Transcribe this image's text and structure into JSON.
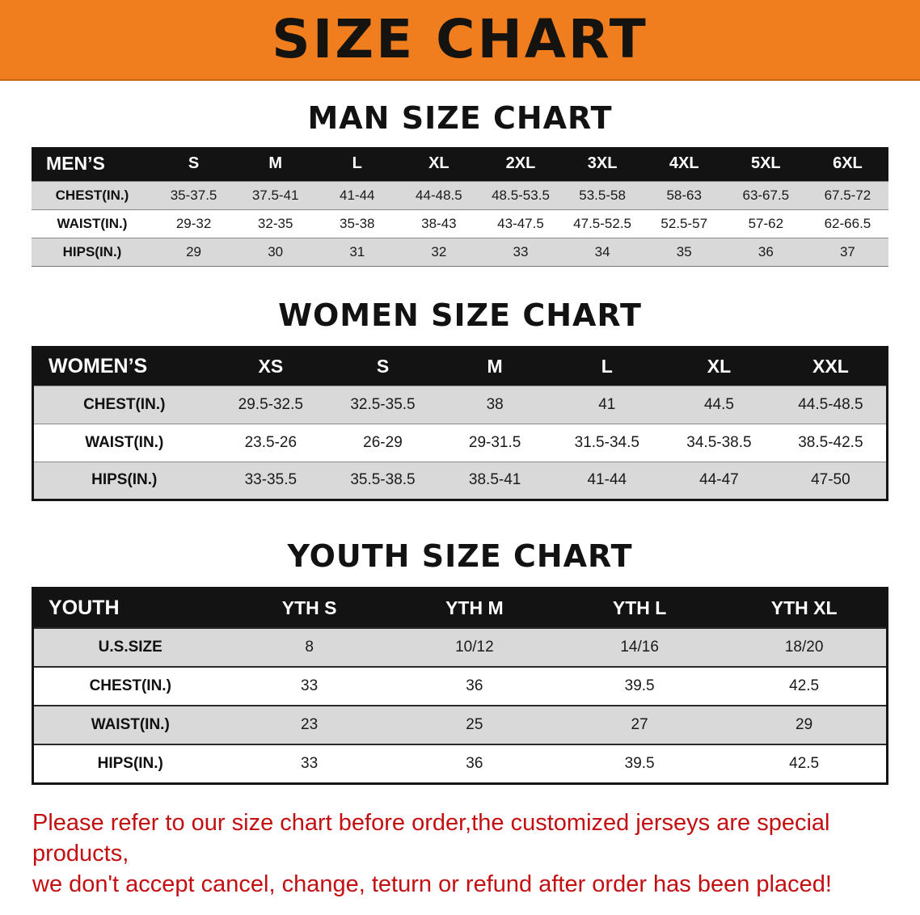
{
  "banner": {
    "title": "SIZE CHART",
    "bg_color": "#f07d1e"
  },
  "sections": [
    {
      "id": "men",
      "heading": "MAN SIZE CHART",
      "table": {
        "header": [
          "MEN’S",
          "S",
          "M",
          "L",
          "XL",
          "2XL",
          "3XL",
          "4XL",
          "5XL",
          "6XL"
        ],
        "rows": [
          [
            "CHEST(IN.)",
            "35-37.5",
            "37.5-41",
            "41-44",
            "44-48.5",
            "48.5-53.5",
            "53.5-58",
            "58-63",
            "63-67.5",
            "67.5-72"
          ],
          [
            "WAIST(IN.)",
            "29-32",
            "32-35",
            "35-38",
            "38-43",
            "43-47.5",
            "47.5-52.5",
            "52.5-57",
            "57-62",
            "62-66.5"
          ],
          [
            "HIPS(IN.)",
            "29",
            "30",
            "31",
            "32",
            "33",
            "34",
            "35",
            "36",
            "37"
          ]
        ]
      }
    },
    {
      "id": "women",
      "heading": "WOMEN SIZE CHART",
      "table": {
        "header": [
          "WOMEN’S",
          "XS",
          "S",
          "M",
          "L",
          "XL",
          "XXL"
        ],
        "rows": [
          [
            "CHEST(IN.)",
            "29.5-32.5",
            "32.5-35.5",
            "38",
            "41",
            "44.5",
            "44.5-48.5"
          ],
          [
            "WAIST(IN.)",
            "23.5-26",
            "26-29",
            "29-31.5",
            "31.5-34.5",
            "34.5-38.5",
            "38.5-42.5"
          ],
          [
            "HIPS(IN.)",
            "33-35.5",
            "35.5-38.5",
            "38.5-41",
            "41-44",
            "44-47",
            "47-50"
          ]
        ]
      }
    },
    {
      "id": "youth",
      "heading": "YOUTH SIZE CHART",
      "table": {
        "header": [
          "YOUTH",
          "YTH S",
          "YTH M",
          "YTH L",
          "YTH XL"
        ],
        "rows": [
          [
            "U.S.SIZE",
            "8",
            "10/12",
            "14/16",
            "18/20"
          ],
          [
            "CHEST(IN.)",
            "33",
            "36",
            "39.5",
            "42.5"
          ],
          [
            "WAIST(IN.)",
            "23",
            "25",
            "27",
            "29"
          ],
          [
            "HIPS(IN.)",
            "33",
            "36",
            "39.5",
            "42.5"
          ]
        ]
      }
    }
  ],
  "footer": {
    "color": "#c40f12",
    "lines": [
      "Please refer to our size chart before order,the customized jerseys are special products,",
      "we don't accept cancel, change, teturn or refund after order has been placed!"
    ]
  }
}
